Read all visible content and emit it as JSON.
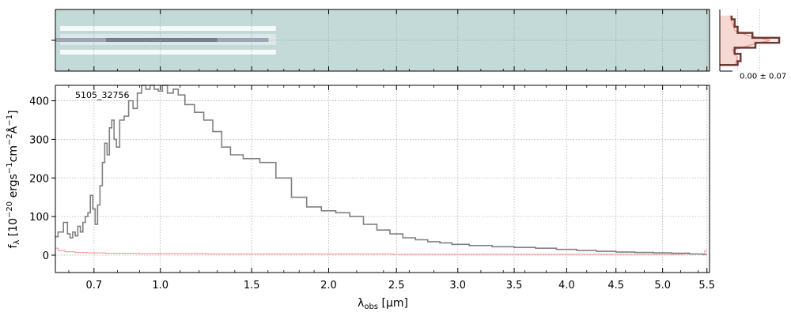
{
  "chart_data": [
    {
      "type": "heatmap",
      "panel": "2d-spectrum",
      "colormap": "bone_r",
      "background_color": "#c4dad8",
      "trace": [
        {
          "x_um": 0.55,
          "center": 0.1
        },
        {
          "x_um": 0.75,
          "center": 0.35
        },
        {
          "x_um": 1.0,
          "center": 0.55
        },
        {
          "x_um": 1.3,
          "center": 0.35
        },
        {
          "x_um": 1.6,
          "center": 0.1
        }
      ],
      "grid": true
    },
    {
      "type": "line",
      "panel": "1d-spectrum",
      "annotation": "5105_32756",
      "xlabel": "λobs [μm]",
      "xlabel_main": "λ",
      "xlabel_sub": "obs",
      "xlabel_unit": " [μm]",
      "ylabel": "fλ [10⁻²⁰ ergs⁻¹cm⁻²Å⁻¹]",
      "ylabel_main": "f",
      "ylabel_sub": "λ",
      "ylabel_unit": " [10",
      "ylabel_exp1": "−20",
      "ylabel_mid1": " ergs",
      "ylabel_exp2": "−1",
      "ylabel_mid2": "cm",
      "ylabel_exp3": "−2",
      "ylabel_mid3": "Å",
      "ylabel_exp4": "−1",
      "ylabel_end": "]",
      "x_tick_labels": [
        "0.7",
        "1.0",
        "1.5",
        "2.0",
        "2.5",
        "3.0",
        "3.5",
        "4.0",
        "4.5",
        "5.0",
        "5.5"
      ],
      "x_tick_values": [
        0.7,
        1.0,
        1.5,
        2.0,
        2.5,
        3.0,
        3.5,
        4.0,
        4.5,
        5.0,
        5.5
      ],
      "x_minor_ticks": [
        0.6,
        0.8,
        0.9,
        1.1,
        1.2,
        1.3,
        1.4,
        1.6,
        1.7,
        1.8,
        1.9,
        2.2,
        2.4,
        2.6,
        2.8,
        3.2,
        3.4,
        3.6,
        3.8,
        4.2,
        4.4,
        4.6,
        4.8,
        5.2,
        5.4
      ],
      "y_tick_labels": [
        "0",
        "100",
        "200",
        "300",
        "400"
      ],
      "y_tick_values": [
        0,
        100,
        200,
        300,
        400
      ],
      "xlim": [
        0.55,
        5.53
      ],
      "ylim": [
        -45,
        440
      ],
      "x_scale": "square-root",
      "grid": true,
      "series": [
        {
          "role": "flux",
          "color": "#808080",
          "x": [
            0.55,
            0.57,
            0.59,
            0.6,
            0.61,
            0.62,
            0.63,
            0.64,
            0.65,
            0.66,
            0.67,
            0.68,
            0.69,
            0.7,
            0.71,
            0.72,
            0.73,
            0.74,
            0.75,
            0.76,
            0.77,
            0.78,
            0.79,
            0.8,
            0.82,
            0.84,
            0.86,
            0.88,
            0.9,
            0.92,
            0.94,
            0.96,
            0.98,
            1.0,
            1.02,
            1.05,
            1.08,
            1.1,
            1.15,
            1.2,
            1.25,
            1.3,
            1.35,
            1.4,
            1.5,
            1.6,
            1.7,
            1.8,
            1.9,
            2.0,
            2.1,
            2.2,
            2.3,
            2.4,
            2.5,
            2.6,
            2.7,
            2.8,
            2.9,
            3.0,
            3.2,
            3.4,
            3.6,
            3.8,
            4.0,
            4.2,
            4.4,
            4.6,
            4.8,
            5.0,
            5.2,
            5.4,
            5.5
          ],
          "values": [
            48,
            60,
            85,
            55,
            45,
            60,
            50,
            75,
            60,
            85,
            100,
            110,
            155,
            120,
            80,
            130,
            180,
            240,
            290,
            260,
            330,
            350,
            300,
            280,
            350,
            360,
            400,
            380,
            420,
            440,
            430,
            440,
            430,
            425,
            440,
            420,
            430,
            415,
            390,
            370,
            350,
            320,
            280,
            260,
            250,
            240,
            200,
            150,
            125,
            115,
            110,
            100,
            80,
            65,
            55,
            45,
            40,
            35,
            32,
            28,
            25,
            22,
            20,
            18,
            15,
            12,
            10,
            8,
            7,
            6,
            5,
            3,
            2
          ]
        },
        {
          "role": "uncertainty",
          "color": "#f4a0a0",
          "x": [
            0.55,
            0.57,
            0.6,
            0.65,
            0.7,
            0.8,
            1.0,
            1.5,
            2.0,
            3.0,
            4.0,
            5.0,
            5.45,
            5.5
          ],
          "values": [
            18,
            12,
            9,
            7,
            6,
            5,
            4,
            3,
            3,
            2,
            2,
            2,
            3,
            12
          ]
        }
      ]
    },
    {
      "type": "line",
      "panel": "profile",
      "label": "0.00 ± 0.07",
      "colors": {
        "data": "#6b3a30",
        "model": "#f4a0a0",
        "fill": "#f7d9d4"
      },
      "profile": [
        {
          "y": -1.0,
          "value": 0.3
        },
        {
          "y": -0.7,
          "value": 0.35
        },
        {
          "y": -0.4,
          "value": 0.25
        },
        {
          "y": -0.2,
          "value": 0.6
        },
        {
          "y": 0.0,
          "value": 1.0
        },
        {
          "y": 0.2,
          "value": 0.55
        },
        {
          "y": 0.4,
          "value": 0.3
        },
        {
          "y": 0.7,
          "value": 0.25
        },
        {
          "y": 1.0,
          "value": 0.2
        }
      ]
    }
  ]
}
